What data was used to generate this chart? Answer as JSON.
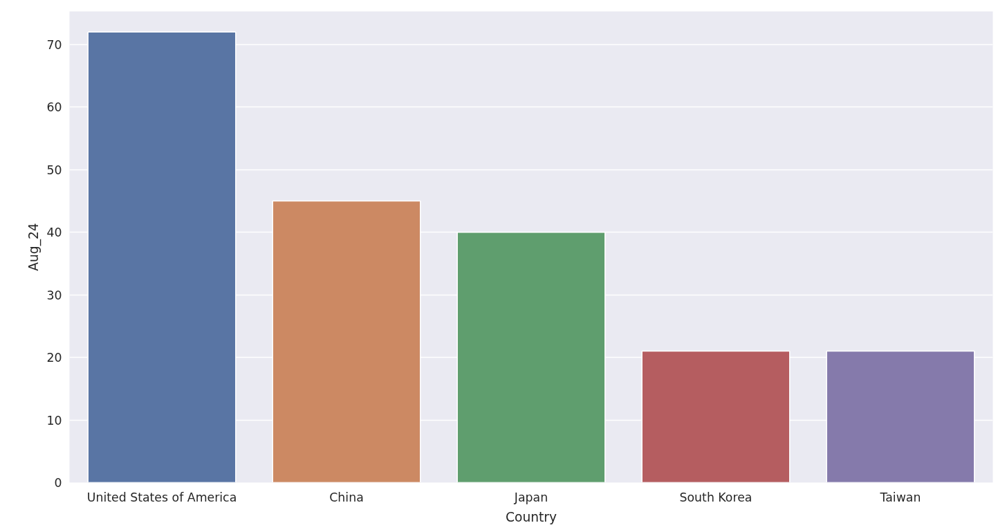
{
  "chart_data": {
    "type": "bar",
    "xlabel": "Country",
    "ylabel": "Aug_24",
    "categories": [
      "United States of America",
      "China",
      "Japan",
      "South Korea",
      "Taiwan"
    ],
    "values": [
      72,
      45,
      40,
      21,
      21
    ],
    "colors": [
      "#5975a4",
      "#cc8963",
      "#5f9e6e",
      "#b55d60",
      "#857aab"
    ],
    "ylim": [
      0,
      75.3
    ],
    "yticks": [
      0,
      10,
      20,
      30,
      40,
      50,
      60,
      70
    ],
    "grid": "y"
  }
}
